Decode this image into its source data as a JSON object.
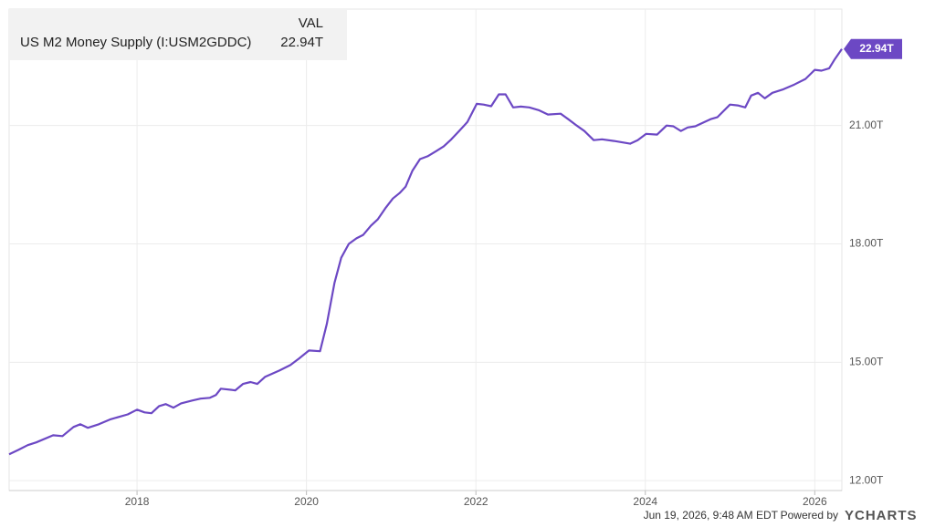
{
  "chart_data": {
    "type": "line",
    "legend_header": "VAL",
    "series": [
      {
        "name": "US M2 Money Supply (I:USM2GDDC)",
        "color": "#6c48c4",
        "values": [
          12.67,
          12.78,
          12.9,
          12.97,
          13.15,
          13.13,
          13.36,
          13.43,
          13.34,
          13.43,
          13.55,
          13.68,
          13.8,
          13.73,
          13.71,
          13.89,
          13.94,
          13.85,
          13.96,
          14.03,
          14.08,
          14.1,
          14.17,
          14.33,
          14.29,
          14.45,
          14.5,
          14.45,
          14.63,
          14.79,
          14.93,
          15.09,
          15.3,
          15.28,
          15.97,
          17.01,
          17.65,
          18.0,
          18.14,
          18.23,
          18.46,
          18.62,
          18.9,
          19.15,
          19.29,
          19.45,
          19.85,
          20.15,
          20.22,
          20.35,
          20.47,
          20.65,
          20.88,
          21.09,
          21.55,
          21.53,
          21.49,
          21.79,
          21.79,
          21.46,
          21.48,
          21.46,
          21.39,
          21.28,
          21.3,
          21.16,
          21.0,
          20.86,
          20.63,
          20.65,
          20.61,
          20.54,
          20.63,
          20.79,
          20.77,
          21.0,
          20.98,
          20.86,
          20.95,
          20.98,
          21.07,
          21.16,
          21.21,
          21.53,
          21.51,
          21.46,
          21.76,
          21.83,
          21.69,
          21.83,
          21.92,
          22.04,
          22.18,
          22.41,
          22.39,
          22.45,
          22.66,
          22.94
        ],
        "value_labels": [
          null,
          null,
          null,
          null,
          null,
          null,
          null,
          null,
          null,
          null,
          null,
          null,
          null,
          null,
          null,
          null,
          null,
          null,
          null,
          null,
          null,
          null,
          null,
          null,
          null,
          null,
          null,
          null,
          null,
          null,
          null,
          null,
          null,
          null,
          null,
          null,
          null,
          null,
          null,
          null,
          null,
          null,
          null,
          null,
          null,
          null,
          null,
          null,
          null,
          null,
          null,
          null,
          null,
          null,
          null,
          null,
          null,
          null,
          null,
          null,
          null,
          null,
          null,
          null,
          null,
          null,
          null,
          null,
          null,
          null,
          null,
          null,
          null,
          null,
          null,
          null,
          null,
          null,
          null,
          null,
          null,
          null,
          null,
          null,
          null,
          null,
          null,
          null,
          null,
          null,
          null,
          null,
          null,
          null,
          null,
          null,
          null,
          "22.94T"
        ]
      }
    ],
    "x": [
      2016.49,
      2016.6,
      2016.71,
      2016.81,
      2017.01,
      2017.12,
      2017.25,
      2017.33,
      2017.42,
      2017.55,
      2017.68,
      2017.89,
      2018.0,
      2018.09,
      2018.17,
      2018.26,
      2018.34,
      2018.43,
      2018.52,
      2018.65,
      2018.75,
      2018.86,
      2018.93,
      2018.99,
      2019.16,
      2019.25,
      2019.34,
      2019.42,
      2019.51,
      2019.68,
      2019.81,
      2019.91,
      2020.03,
      2020.16,
      2020.24,
      2020.33,
      2020.41,
      2020.5,
      2020.59,
      2020.67,
      2020.76,
      2020.84,
      2020.93,
      2021.02,
      2021.1,
      2021.17,
      2021.25,
      2021.34,
      2021.43,
      2021.53,
      2021.62,
      2021.71,
      2021.81,
      2021.9,
      2022.01,
      2022.09,
      2022.18,
      2022.27,
      2022.35,
      2022.44,
      2022.53,
      2022.63,
      2022.74,
      2022.85,
      2023.0,
      2023.09,
      2023.19,
      2023.28,
      2023.39,
      2023.49,
      2023.63,
      2023.82,
      2023.91,
      2024.01,
      2024.14,
      2024.25,
      2024.33,
      2024.42,
      2024.5,
      2024.59,
      2024.68,
      2024.77,
      2024.85,
      2025.0,
      2025.09,
      2025.18,
      2025.25,
      2025.33,
      2025.41,
      2025.5,
      2025.63,
      2025.76,
      2025.89,
      2026.0,
      2026.08,
      2026.17,
      2026.23,
      2026.32
    ],
    "xlim": [
      2016.49,
      2026.32
    ],
    "xticks": [
      2018,
      2020,
      2022,
      2024,
      2026
    ],
    "ylim": [
      11.75,
      23.95
    ],
    "yticks": [
      {
        "value": 12,
        "label": "12.00T"
      },
      {
        "value": 15,
        "label": "15.00T"
      },
      {
        "value": 18,
        "label": "18.00T"
      },
      {
        "value": 21,
        "label": "21.00T"
      }
    ],
    "grid": true
  },
  "footer": {
    "timestamp": "Jun 19, 2026, 9:48 AM EDT",
    "powered_by": "Powered by",
    "brand": "YCHARTS"
  }
}
